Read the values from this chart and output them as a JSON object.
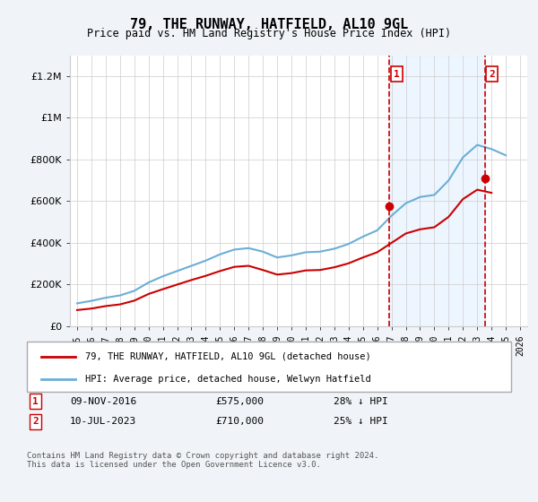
{
  "title": "79, THE RUNWAY, HATFIELD, AL10 9GL",
  "subtitle": "Price paid vs. HM Land Registry's House Price Index (HPI)",
  "hpi_label": "HPI: Average price, detached house, Welwyn Hatfield",
  "property_label": "79, THE RUNWAY, HATFIELD, AL10 9GL (detached house)",
  "annotation1": {
    "label": "1",
    "date": "09-NOV-2016",
    "price": "£575,000",
    "note": "28% ↓ HPI",
    "x_year": 2016.86
  },
  "annotation2": {
    "label": "2",
    "date": "10-JUL-2023",
    "price": "£710,000",
    "note": "25% ↓ HPI",
    "x_year": 2023.53
  },
  "footer": "Contains HM Land Registry data © Crown copyright and database right 2024.\nThis data is licensed under the Open Government Licence v3.0.",
  "hpi_color": "#6baed6",
  "property_color": "#cc0000",
  "vline_color": "#cc0000",
  "background_color": "#f0f4f8",
  "plot_bg": "#ffffff",
  "ylim": [
    0,
    1300000
  ],
  "xlim": [
    1994.5,
    2026.5
  ],
  "yticks": [
    0,
    200000,
    400000,
    600000,
    800000,
    1000000,
    1200000
  ],
  "ytick_labels": [
    "£0",
    "£200K",
    "£400K",
    "£600K",
    "£800K",
    "£1M",
    "£1.2M"
  ],
  "xtick_years": [
    1995,
    1996,
    1997,
    1998,
    1999,
    2000,
    2001,
    2002,
    2003,
    2004,
    2005,
    2006,
    2007,
    2008,
    2009,
    2010,
    2011,
    2012,
    2013,
    2014,
    2015,
    2016,
    2017,
    2018,
    2019,
    2020,
    2021,
    2022,
    2023,
    2024,
    2025,
    2026
  ],
  "hpi_x": [
    1995,
    1996,
    1997,
    1998,
    1999,
    2000,
    2001,
    2002,
    2003,
    2004,
    2005,
    2006,
    2007,
    2008,
    2009,
    2010,
    2011,
    2012,
    2013,
    2014,
    2015,
    2016,
    2017,
    2018,
    2019,
    2020,
    2021,
    2022,
    2023,
    2024,
    2025
  ],
  "hpi_y": [
    110000,
    122000,
    137000,
    148000,
    170000,
    210000,
    240000,
    265000,
    290000,
    315000,
    345000,
    368000,
    375000,
    358000,
    330000,
    340000,
    355000,
    358000,
    372000,
    395000,
    430000,
    460000,
    530000,
    590000,
    620000,
    630000,
    700000,
    810000,
    870000,
    850000,
    820000
  ],
  "property_x": [
    1995,
    1996,
    1997,
    1998,
    1999,
    2000,
    2001,
    2002,
    2003,
    2004,
    2005,
    2006,
    2007,
    2008,
    2009,
    2010,
    2011,
    2012,
    2013,
    2014,
    2015,
    2016,
    2017,
    2018,
    2019,
    2020,
    2021,
    2022,
    2023,
    2024
  ],
  "property_y": [
    78000,
    85000,
    97000,
    105000,
    123000,
    155000,
    178000,
    200000,
    222000,
    242000,
    265000,
    285000,
    290000,
    270000,
    248000,
    255000,
    268000,
    270000,
    283000,
    302000,
    330000,
    355000,
    400000,
    445000,
    465000,
    475000,
    525000,
    610000,
    655000,
    640000
  ],
  "sale1_x": 2016.86,
  "sale1_y": 575000,
  "sale2_x": 2023.53,
  "sale2_y": 710000
}
